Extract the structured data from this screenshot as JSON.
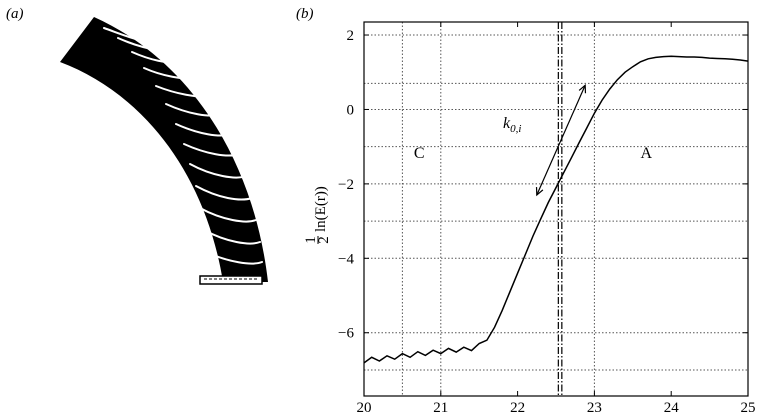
{
  "panels": [
    {
      "label": "(a)"
    },
    {
      "label": "(b)"
    }
  ],
  "ylabel_frac": {
    "num": "1",
    "den": "2"
  },
  "ylabel_text": "ln(E(r))",
  "annotation_k": {
    "base": "k",
    "sub": "0,i"
  },
  "colors": {
    "line": "#000000",
    "grid": "#555555",
    "frame": "#000000",
    "blade": "#000000"
  },
  "chart_data": {
    "type": "line",
    "title": "",
    "xlabel": "",
    "ylabel": "½ln(E(r))",
    "xlim": [
      20,
      25
    ],
    "ylim": [
      -7.7,
      2.35
    ],
    "xticks": [
      20,
      21,
      22,
      23,
      24,
      25
    ],
    "yticks": [
      -6,
      -4,
      -2,
      0,
      2
    ],
    "grid": {
      "vertical_dotted": [
        20.5,
        21,
        23
      ],
      "horizontal_dotted": [
        -7,
        -6,
        -4,
        -3,
        -2,
        -1,
        0,
        0.7,
        2
      ]
    },
    "vertical_marker": {
      "x": 22.55,
      "style": "dash-dot"
    },
    "regions": [
      {
        "label": "C",
        "x": 20.65,
        "y": -1.3
      },
      {
        "label": "A",
        "x": 23.6,
        "y": -1.3
      }
    ],
    "annotation": {
      "text": "k0,i",
      "x": 22.2,
      "y": -0.5,
      "arrow_from": [
        22.25,
        -2.3
      ],
      "arrow_to": [
        22.88,
        0.65
      ]
    },
    "series": [
      {
        "values": [
          [
            20.0,
            -6.75
          ],
          [
            20.1,
            -6.72
          ],
          [
            20.2,
            -6.7
          ],
          [
            20.3,
            -6.68
          ],
          [
            20.4,
            -6.65
          ],
          [
            20.5,
            -6.62
          ],
          [
            20.6,
            -6.6
          ],
          [
            20.7,
            -6.57
          ],
          [
            20.8,
            -6.55
          ],
          [
            20.9,
            -6.53
          ],
          [
            21.0,
            -6.5
          ],
          [
            21.1,
            -6.48
          ],
          [
            21.2,
            -6.46
          ],
          [
            21.3,
            -6.45
          ],
          [
            21.4,
            -6.42
          ],
          [
            21.5,
            -6.35
          ],
          [
            21.6,
            -6.2
          ],
          [
            21.7,
            -5.85
          ],
          [
            21.8,
            -5.4
          ],
          [
            21.9,
            -4.9
          ],
          [
            22.0,
            -4.4
          ],
          [
            22.1,
            -3.9
          ],
          [
            22.2,
            -3.4
          ],
          [
            22.3,
            -2.95
          ],
          [
            22.4,
            -2.5
          ],
          [
            22.5,
            -2.1
          ],
          [
            22.6,
            -1.7
          ],
          [
            22.7,
            -1.3
          ],
          [
            22.8,
            -0.9
          ],
          [
            22.9,
            -0.5
          ],
          [
            23.0,
            -0.1
          ],
          [
            23.1,
            0.25
          ],
          [
            23.2,
            0.55
          ],
          [
            23.3,
            0.8
          ],
          [
            23.4,
            1.0
          ],
          [
            23.5,
            1.15
          ],
          [
            23.6,
            1.28
          ],
          [
            23.7,
            1.36
          ],
          [
            23.8,
            1.4
          ],
          [
            23.9,
            1.42
          ],
          [
            24.0,
            1.43
          ],
          [
            24.1,
            1.42
          ],
          [
            24.2,
            1.41
          ],
          [
            24.3,
            1.41
          ],
          [
            24.4,
            1.4
          ],
          [
            24.5,
            1.38
          ],
          [
            24.6,
            1.37
          ],
          [
            24.7,
            1.36
          ],
          [
            24.8,
            1.35
          ],
          [
            24.9,
            1.33
          ],
          [
            25.0,
            1.3
          ]
        ]
      }
    ]
  }
}
